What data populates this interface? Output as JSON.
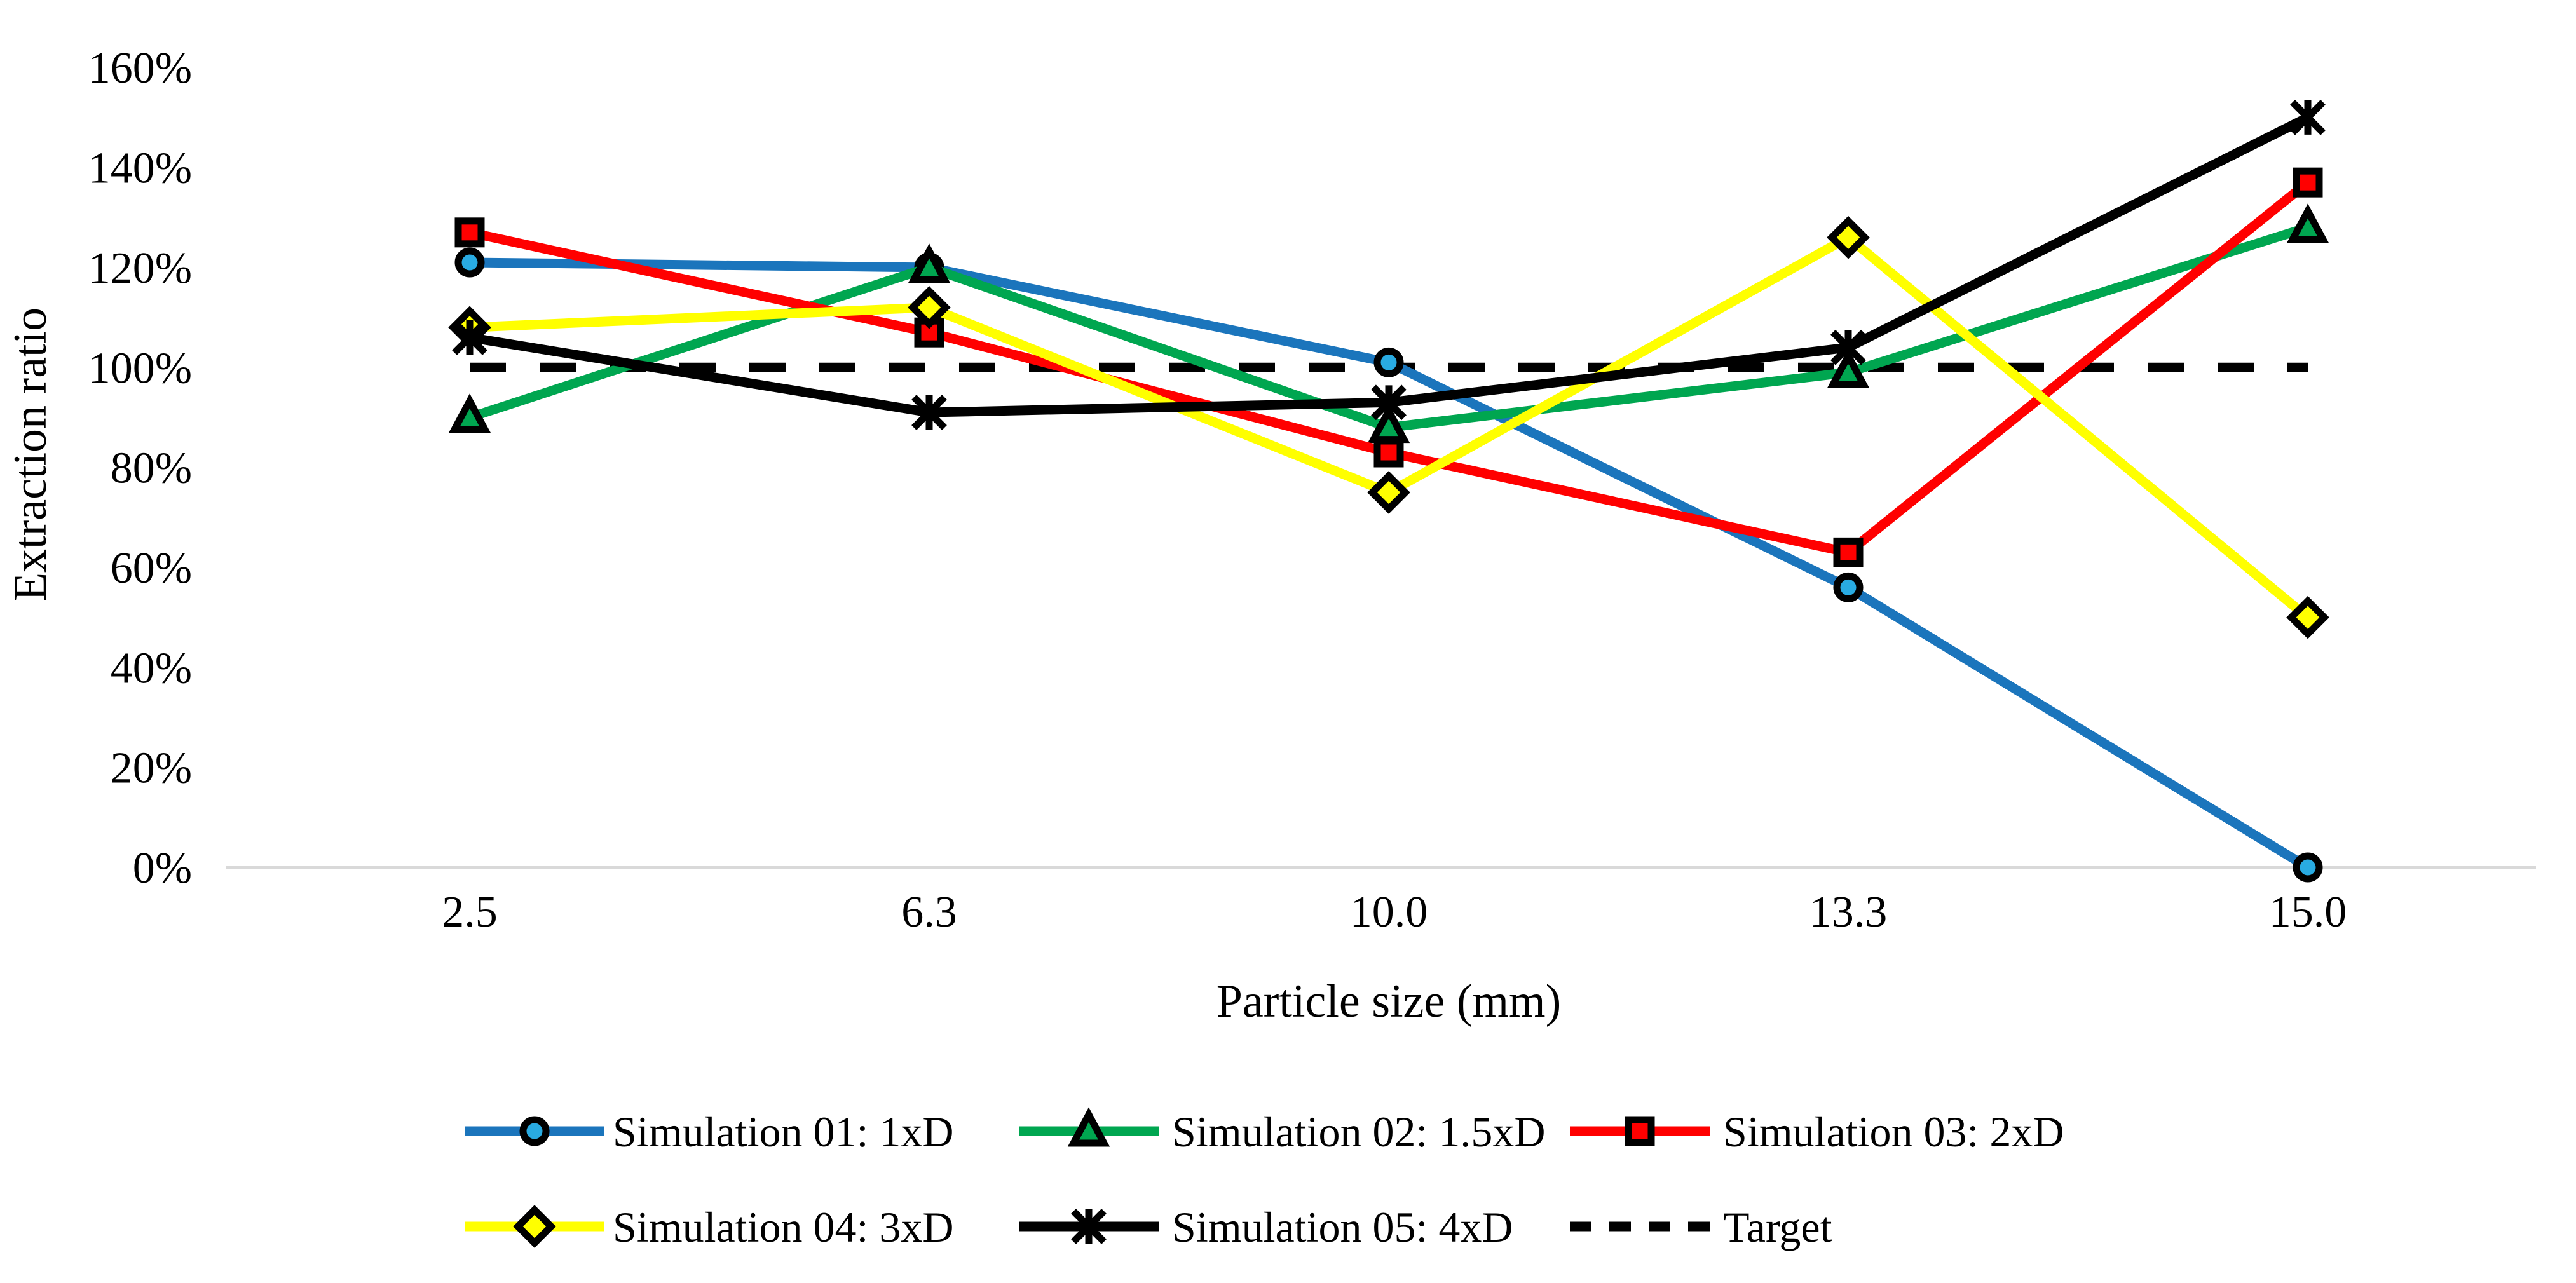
{
  "figure": {
    "background_color": "#FFFFFF",
    "axis_line_color": "#D9D9D9",
    "marker_outline_color": "#000000",
    "text_color": "#000000"
  },
  "chart_data": {
    "type": "line",
    "title": "",
    "xlabel": "Particle size (mm)",
    "ylabel": "Extraction ratio",
    "categories": [
      "2.5",
      "6.3",
      "10.0",
      "13.3",
      "15.0"
    ],
    "y_tick_labels": [
      "0%",
      "20%",
      "40%",
      "60%",
      "80%",
      "100%",
      "120%",
      "140%",
      "160%"
    ],
    "ylim": [
      0,
      160
    ],
    "y_tick_step": 20,
    "grid": "off",
    "legend_position": "bottom",
    "series": [
      {
        "name": "Simulation 01: 1xD",
        "marker": "circle",
        "line_color": "#1B75BC",
        "marker_fill": "#29ABE2",
        "dashed": false,
        "values": [
          121,
          120,
          101,
          56,
          0
        ]
      },
      {
        "name": "Simulation 02: 1.5xD",
        "marker": "triangle",
        "line_color": "#00A650",
        "marker_fill": "#00A650",
        "dashed": false,
        "values": [
          90,
          120,
          88,
          99,
          128
        ]
      },
      {
        "name": "Simulation 03: 2xD",
        "marker": "square",
        "line_color": "#FF0000",
        "marker_fill": "#FF0000",
        "dashed": false,
        "values": [
          127,
          107,
          83,
          63,
          137
        ]
      },
      {
        "name": "Simulation 04: 3xD",
        "marker": "diamond",
        "line_color": "#FFFF00",
        "marker_fill": "#FFFF00",
        "dashed": false,
        "values": [
          108,
          112,
          75,
          126,
          50
        ]
      },
      {
        "name": "Simulation 05: 4xD",
        "marker": "star",
        "line_color": "#000000",
        "marker_fill": "#000000",
        "dashed": false,
        "values": [
          106,
          91,
          93,
          104,
          150
        ]
      },
      {
        "name": "Target",
        "marker": "none",
        "line_color": "#000000",
        "marker_fill": "#000000",
        "dashed": true,
        "values": [
          100,
          100,
          100,
          100,
          100
        ]
      }
    ]
  }
}
